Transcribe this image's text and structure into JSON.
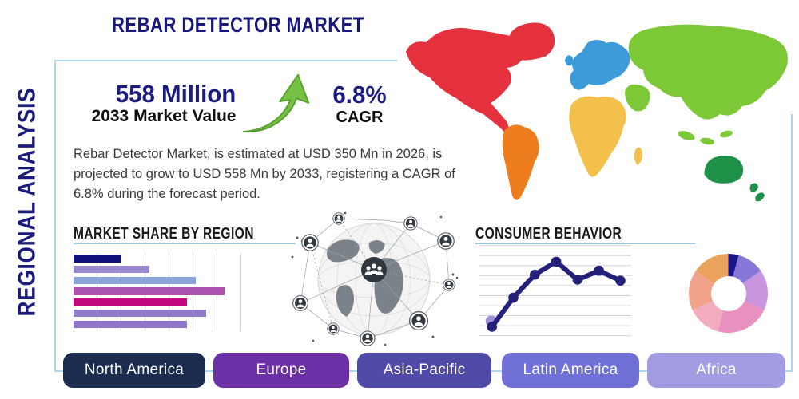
{
  "page": {
    "title": "REBAR DETECTOR MARKET",
    "vertical_label": "REGIONAL ANALYSIS"
  },
  "stats": {
    "market_value": "558 Million",
    "market_value_caption": "2033 Market Value",
    "cagr_value": "6.8%",
    "cagr_caption": "CAGR"
  },
  "description": "Rebar Detector Market, is estimated at USD 350 Mn in 2026, is projected to grow to USD 558 Mn by 2033, registering a CAGR of 6.8% during the forecast period.",
  "sections": {
    "market_share": {
      "title": "MARKET SHARE BY REGION"
    },
    "consumer_behavior": {
      "title": "CONSUMER BEHAVIOR"
    }
  },
  "regions": [
    {
      "label": "North America",
      "color": "#1b2c4f"
    },
    {
      "label": "Europe",
      "color": "#6c2fa6"
    },
    {
      "label": "Asia-Pacific",
      "color": "#4f4aa8"
    },
    {
      "label": "Latin America",
      "color": "#7170d6"
    },
    {
      "label": "Africa",
      "color": "#a29de2"
    }
  ],
  "map": {
    "region_colors": {
      "north_america": "#e5303d",
      "greenland": "#e5303d",
      "south_america": "#ee7e1d",
      "europe": "#3d9bd9",
      "africa": "#f2c04b",
      "madagascar": "#f2c04b",
      "asia": "#7cc836",
      "middle_east": "#7cc836",
      "southeast_asia": "#7cc836",
      "oceania": "#1e9048"
    }
  },
  "theme": {
    "navy_text": "#1b1b7d",
    "heading_black": "#1a1a1a",
    "underline_blue": "#8fc6de",
    "box_border_blue": "#aed7ea",
    "arrow_green": "#76c043"
  },
  "chart_data": [
    {
      "type": "bar",
      "title": "MARKET SHARE BY REGION",
      "orientation": "horizontal",
      "categories": [
        "",
        "",
        "",
        "",
        "",
        "",
        ""
      ],
      "values": [
        32,
        50,
        81,
        100,
        75,
        88,
        75
      ],
      "value_note": "bar lengths estimated as percent of longest bar; no axis labels shown in image",
      "colors": [
        "#10107a",
        "#9b87cf",
        "#8aa4de",
        "#ab51ae",
        "#c4087e",
        "#9379ca",
        "#9177cb"
      ],
      "grid": "vertical"
    },
    {
      "type": "line",
      "title": "CONSUMER BEHAVIOR",
      "x": [
        1,
        2,
        3,
        4,
        5,
        6,
        7
      ],
      "values": [
        1.0,
        3.9,
        6.2,
        7.5,
        5.7,
        6.6,
        5.6
      ],
      "ylim": [
        0,
        9
      ],
      "value_note": "values estimated from unlabeled gridlines",
      "line_color": "#232179",
      "marker": "circle",
      "first_point_halo_color": "#a18fd9",
      "grid": "horizontal"
    },
    {
      "type": "pie",
      "variant": "donut",
      "values": [
        4.2,
        11.1,
        16.6,
        22.3,
        13.8,
        16.7,
        15.3
      ],
      "value_note": "slice percentages estimated from angles; no labels shown",
      "colors": [
        "#191289",
        "#8677d9",
        "#c995de",
        "#e891c1",
        "#f3abbe",
        "#f2a38b",
        "#eaa25d"
      ],
      "legend": "none"
    }
  ]
}
